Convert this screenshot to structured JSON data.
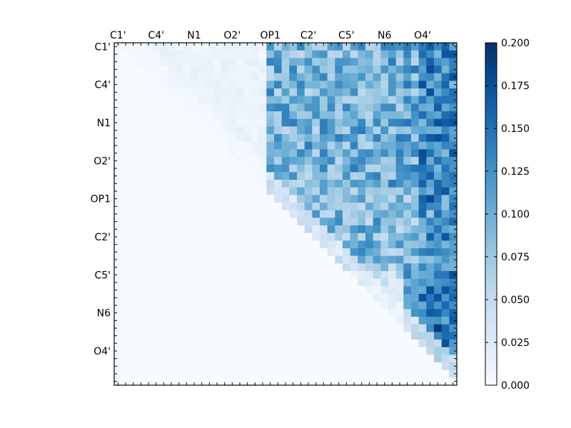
{
  "chart_data": {
    "type": "heatmap",
    "title": "",
    "xlabel": "",
    "ylabel": "",
    "atom_labels": [
      "C1'",
      "C4'",
      "N1",
      "O2'",
      "OP1",
      "C2'",
      "C5'",
      "N6",
      "O4'"
    ],
    "matrix_size": 45,
    "label_every": 5,
    "triangle": "upper",
    "colormap": "Blues",
    "color_low": "#f7fbff",
    "color_high": "#08306b",
    "vmin": 0.0,
    "vmax": 0.2,
    "colorbar_ticks": [
      "0.000",
      "0.025",
      "0.050",
      "0.075",
      "0.100",
      "0.125",
      "0.150",
      "0.175",
      "0.200"
    ],
    "value_summary": {
      "typical_range": [
        0.0,
        0.2
      ],
      "hotspots": [
        {
          "row": 37,
          "col": 42,
          "value": 0.195
        },
        {
          "row": 20,
          "col": 41,
          "value": 0.18
        },
        {
          "row": 25,
          "col": 43,
          "value": 0.17
        },
        {
          "row": 0,
          "col": 43,
          "value": 0.16
        }
      ]
    }
  }
}
